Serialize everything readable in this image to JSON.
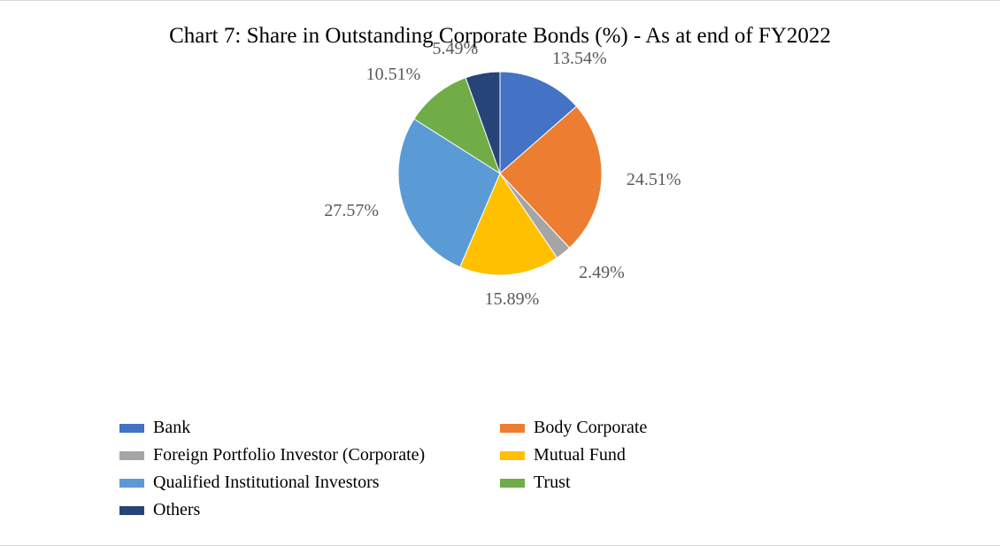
{
  "chart": {
    "type": "pie",
    "title": "Chart 7: Share in Outstanding Corporate Bonds (%) - As at end of FY2022",
    "title_fontsize": 25,
    "label_fontsize": 20,
    "label_color": "#595959",
    "legend_fontsize": 20,
    "background_color": "#ffffff",
    "border_color": "#d9d9d9",
    "pie_radius": 115,
    "start_angle_deg": -90,
    "slices": [
      {
        "name": "Bank",
        "value": 13.54,
        "color": "#4472c4",
        "label": "13.54%"
      },
      {
        "name": "Body Corporate",
        "value": 24.51,
        "color": "#ed7d31",
        "label": "24.51%"
      },
      {
        "name": "Foreign Portfolio Investor (Corporate)",
        "value": 2.49,
        "color": "#a5a5a5",
        "label": "2.49%"
      },
      {
        "name": "Mutual Fund",
        "value": 15.89,
        "color": "#ffc000",
        "label": "15.89%"
      },
      {
        "name": "Qualified Institutional Investors",
        "value": 27.57,
        "color": "#5b9bd5",
        "label": "27.57%"
      },
      {
        "name": "Trust",
        "value": 10.51,
        "color": "#70ad47",
        "label": "10.51%"
      },
      {
        "name": "Others",
        "value": 5.49,
        "color": "#264478",
        "label": "5.49%"
      }
    ],
    "legend_order": [
      "Bank",
      "Body Corporate",
      "Foreign Portfolio Investor (Corporate)",
      "Mutual Fund",
      "Qualified Institutional Investors",
      "Trust",
      "Others"
    ]
  }
}
